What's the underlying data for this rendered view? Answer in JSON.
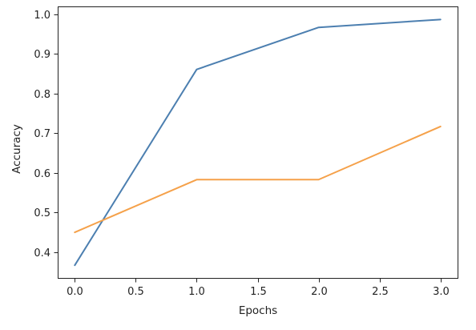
{
  "chart_data": {
    "type": "line",
    "title": "",
    "xlabel": "Epochs",
    "ylabel": "Accuracy",
    "xlim": [
      -0.14,
      3.14
    ],
    "ylim": [
      0.335,
      1.02
    ],
    "xticks": [
      0.0,
      0.5,
      1.0,
      1.5,
      2.0,
      2.5,
      3.0
    ],
    "xtick_labels": [
      "0.0",
      "0.5",
      "1.0",
      "1.5",
      "2.0",
      "2.5",
      "3.0"
    ],
    "yticks": [
      0.4,
      0.5,
      0.6,
      0.7,
      0.8,
      0.9,
      1.0
    ],
    "ytick_labels": [
      "0.4",
      "0.5",
      "0.6",
      "0.7",
      "0.8",
      "0.9",
      "1.0"
    ],
    "grid": false,
    "legend": "none",
    "series": [
      {
        "color": "#4c7fb0",
        "x": [
          0,
          1,
          2,
          3
        ],
        "values": [
          0.367,
          0.861,
          0.967,
          0.987
        ]
      },
      {
        "color": "#f5a14a",
        "x": [
          0,
          1,
          2,
          3
        ],
        "values": [
          0.45,
          0.583,
          0.583,
          0.717
        ]
      }
    ]
  }
}
